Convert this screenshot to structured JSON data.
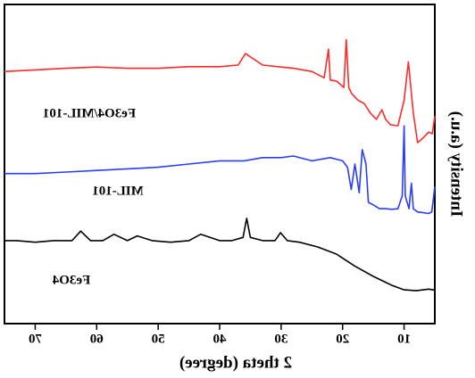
{
  "chart_data": {
    "type": "line",
    "mirrored": true,
    "x_label": "2 theta (degree)",
    "y_label": "Intensity (a.u.)",
    "xlim": [
      5,
      75
    ],
    "xticks": [
      10,
      20,
      30,
      40,
      50,
      60,
      70
    ],
    "ylim": [
      0,
      100
    ],
    "series": [
      {
        "name": "Fe3O4",
        "color": "#000000",
        "x": [
          5,
          6,
          8,
          10,
          12,
          15,
          18,
          21,
          24,
          27,
          29,
          30.1,
          31,
          33,
          35,
          35.6,
          36.2,
          38,
          40,
          43.1,
          45,
          48,
          51,
          53.4,
          55,
          57.2,
          59,
          61,
          62.6,
          64,
          67,
          70,
          73,
          75
        ],
        "values": [
          10.5,
          10.8,
          10.3,
          10.6,
          12,
          14.8,
          18,
          21.8,
          24,
          25.5,
          26,
          28.5,
          26,
          26,
          27,
          33,
          27,
          26,
          26,
          28,
          26,
          25.5,
          26,
          27.5,
          26,
          28,
          26,
          26,
          29,
          26,
          26,
          25.5,
          26,
          26
        ]
      },
      {
        "name": "MIL-101",
        "color": "#2a3cff",
        "x": [
          5,
          5.5,
          6,
          7,
          7.8,
          8.5,
          8.8,
          9.2,
          9.8,
          10,
          10.3,
          11,
          12,
          13,
          14,
          15,
          15.8,
          16.2,
          16.8,
          17.3,
          18,
          18.6,
          19.2,
          20,
          22,
          25,
          28,
          30,
          33,
          36,
          40,
          45,
          50,
          55,
          60,
          65,
          70,
          75
        ],
        "values": [
          43,
          35,
          34.5,
          34.8,
          35,
          36,
          44,
          36,
          40,
          62,
          40,
          36,
          35.8,
          36,
          36,
          37.2,
          38,
          50,
          54.5,
          41,
          50,
          42,
          49,
          51,
          52,
          51,
          52.5,
          52,
          52,
          51,
          51,
          50,
          49,
          48.5,
          48,
          47.5,
          47,
          47
        ]
      },
      {
        "name": "Fe3O4/MIL-101",
        "color": "#ff2a2a",
        "x": [
          5,
          5.4,
          6,
          7,
          7.8,
          8.5,
          9.3,
          10,
          11,
          12.2,
          13,
          13.6,
          14.5,
          15.5,
          16.5,
          17.5,
          18.5,
          19,
          19.4,
          19.8,
          21,
          22,
          22.3,
          23,
          25,
          28,
          30,
          33,
          35.8,
          37,
          40,
          45,
          50,
          55,
          60,
          65,
          70,
          75
        ],
        "values": [
          65,
          59.5,
          60,
          58,
          56.7,
          66,
          82,
          70,
          62,
          62.3,
          64,
          67,
          64,
          66,
          69,
          70,
          72,
          74,
          89,
          74,
          76,
          76.3,
          86,
          77,
          79,
          80,
          80.4,
          81,
          84.6,
          81,
          80.5,
          80.5,
          80,
          80,
          80.4,
          80,
          79.5,
          79
        ]
      }
    ]
  }
}
